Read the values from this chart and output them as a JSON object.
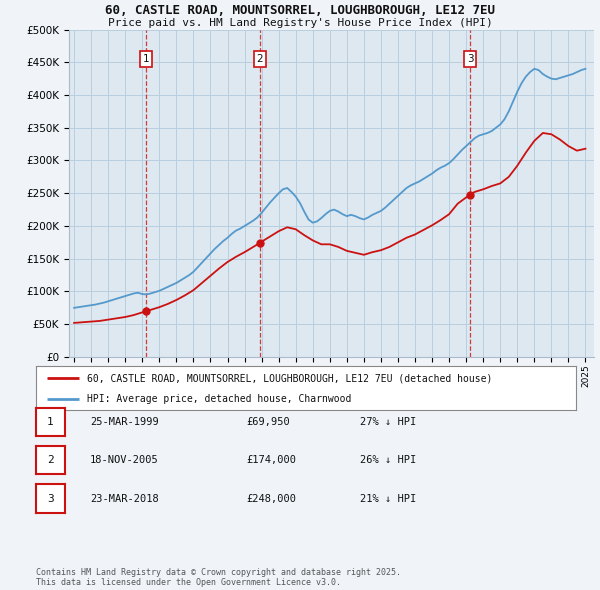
{
  "title": "60, CASTLE ROAD, MOUNTSORREL, LOUGHBOROUGH, LE12 7EU",
  "subtitle": "Price paid vs. HM Land Registry's House Price Index (HPI)",
  "ylim": [
    0,
    500000
  ],
  "yticks": [
    0,
    50000,
    100000,
    150000,
    200000,
    250000,
    300000,
    350000,
    400000,
    450000,
    500000
  ],
  "ytick_labels": [
    "£0",
    "£50K",
    "£100K",
    "£150K",
    "£200K",
    "£250K",
    "£300K",
    "£350K",
    "£400K",
    "£450K",
    "£500K"
  ],
  "xlim_start": 1994.7,
  "xlim_end": 2025.5,
  "bg_color": "#f0f4f8",
  "plot_bg_color": "#dde8f0",
  "grid_color": "#b8cfe0",
  "hpi_color": "#5599cc",
  "sale_color": "#cc1111",
  "vline_color": "#cc1111",
  "sale_points": [
    {
      "year": 1999.23,
      "value": 69950,
      "label": "1"
    },
    {
      "year": 2005.89,
      "value": 174000,
      "label": "2"
    },
    {
      "year": 2018.23,
      "value": 248000,
      "label": "3"
    }
  ],
  "legend_entries": [
    {
      "label": "60, CASTLE ROAD, MOUNTSORREL, LOUGHBOROUGH, LE12 7EU (detached house)",
      "color": "#cc1111"
    },
    {
      "label": "HPI: Average price, detached house, Charnwood",
      "color": "#5599cc"
    }
  ],
  "table_rows": [
    {
      "num": "1",
      "date": "25-MAR-1999",
      "price": "£69,950",
      "pct": "27% ↓ HPI"
    },
    {
      "num": "2",
      "date": "18-NOV-2005",
      "price": "£174,000",
      "pct": "26% ↓ HPI"
    },
    {
      "num": "3",
      "date": "23-MAR-2018",
      "price": "£248,000",
      "pct": "21% ↓ HPI"
    }
  ],
  "footnote": "Contains HM Land Registry data © Crown copyright and database right 2025.\nThis data is licensed under the Open Government Licence v3.0.",
  "vline_years": [
    1999.23,
    2005.89,
    2018.23
  ],
  "hpi_x": [
    1995.0,
    1995.25,
    1995.5,
    1995.75,
    1996.0,
    1996.25,
    1996.5,
    1996.75,
    1997.0,
    1997.25,
    1997.5,
    1997.75,
    1998.0,
    1998.25,
    1998.5,
    1998.75,
    1999.0,
    1999.25,
    1999.5,
    1999.75,
    2000.0,
    2000.25,
    2000.5,
    2000.75,
    2001.0,
    2001.25,
    2001.5,
    2001.75,
    2002.0,
    2002.25,
    2002.5,
    2002.75,
    2003.0,
    2003.25,
    2003.5,
    2003.75,
    2004.0,
    2004.25,
    2004.5,
    2004.75,
    2005.0,
    2005.25,
    2005.5,
    2005.75,
    2006.0,
    2006.25,
    2006.5,
    2006.75,
    2007.0,
    2007.25,
    2007.5,
    2007.75,
    2008.0,
    2008.25,
    2008.5,
    2008.75,
    2009.0,
    2009.25,
    2009.5,
    2009.75,
    2010.0,
    2010.25,
    2010.5,
    2010.75,
    2011.0,
    2011.25,
    2011.5,
    2011.75,
    2012.0,
    2012.25,
    2012.5,
    2012.75,
    2013.0,
    2013.25,
    2013.5,
    2013.75,
    2014.0,
    2014.25,
    2014.5,
    2014.75,
    2015.0,
    2015.25,
    2015.5,
    2015.75,
    2016.0,
    2016.25,
    2016.5,
    2016.75,
    2017.0,
    2017.25,
    2017.5,
    2017.75,
    2018.0,
    2018.25,
    2018.5,
    2018.75,
    2019.0,
    2019.25,
    2019.5,
    2019.75,
    2020.0,
    2020.25,
    2020.5,
    2020.75,
    2021.0,
    2021.25,
    2021.5,
    2021.75,
    2022.0,
    2022.25,
    2022.5,
    2022.75,
    2023.0,
    2023.25,
    2023.5,
    2023.75,
    2024.0,
    2024.25,
    2024.5,
    2024.75,
    2025.0
  ],
  "hpi_y": [
    75000,
    76000,
    77000,
    78000,
    79000,
    80000,
    81500,
    83000,
    85000,
    87000,
    89000,
    91000,
    93000,
    95000,
    97000,
    98000,
    96000,
    95500,
    97000,
    99000,
    101000,
    104000,
    107000,
    110000,
    113000,
    117000,
    121000,
    125000,
    130000,
    137000,
    144000,
    151000,
    158000,
    165000,
    171000,
    177000,
    182000,
    188000,
    193000,
    196000,
    200000,
    204000,
    208000,
    213000,
    220000,
    228000,
    236000,
    243000,
    250000,
    256000,
    258000,
    252000,
    245000,
    235000,
    222000,
    210000,
    205000,
    207000,
    212000,
    218000,
    223000,
    225000,
    222000,
    218000,
    215000,
    217000,
    215000,
    212000,
    210000,
    213000,
    217000,
    220000,
    223000,
    228000,
    234000,
    240000,
    246000,
    252000,
    258000,
    262000,
    265000,
    268000,
    272000,
    276000,
    280000,
    285000,
    289000,
    292000,
    296000,
    302000,
    309000,
    316000,
    322000,
    328000,
    334000,
    338000,
    340000,
    342000,
    345000,
    350000,
    355000,
    363000,
    375000,
    390000,
    405000,
    418000,
    428000,
    435000,
    440000,
    438000,
    432000,
    428000,
    425000,
    424000,
    426000,
    428000,
    430000,
    432000,
    435000,
    438000,
    440000
  ],
  "sale_x": [
    1995.0,
    1995.5,
    1996.0,
    1996.5,
    1997.0,
    1997.5,
    1998.0,
    1998.5,
    1999.23,
    1999.5,
    2000.0,
    2000.5,
    2001.0,
    2001.5,
    2002.0,
    2002.5,
    2003.0,
    2003.5,
    2004.0,
    2004.5,
    2005.0,
    2005.89,
    2006.0,
    2006.5,
    2007.0,
    2007.5,
    2008.0,
    2008.5,
    2009.0,
    2009.5,
    2010.0,
    2010.5,
    2011.0,
    2011.5,
    2012.0,
    2012.5,
    2013.0,
    2013.5,
    2014.0,
    2014.5,
    2015.0,
    2015.5,
    2016.0,
    2016.5,
    2017.0,
    2017.5,
    2018.23,
    2018.5,
    2019.0,
    2019.5,
    2020.0,
    2020.5,
    2021.0,
    2021.5,
    2022.0,
    2022.5,
    2023.0,
    2023.5,
    2024.0,
    2024.5,
    2025.0
  ],
  "sale_y": [
    52000,
    53000,
    54000,
    55000,
    57000,
    59000,
    61000,
    64000,
    69950,
    72000,
    76000,
    81000,
    87000,
    94000,
    102000,
    113000,
    124000,
    135000,
    145000,
    153000,
    160000,
    174000,
    176000,
    184000,
    192000,
    198000,
    195000,
    186000,
    178000,
    172000,
    172000,
    168000,
    162000,
    159000,
    156000,
    160000,
    163000,
    168000,
    175000,
    182000,
    187000,
    194000,
    201000,
    209000,
    218000,
    234000,
    248000,
    252000,
    256000,
    261000,
    265000,
    275000,
    292000,
    312000,
    330000,
    342000,
    340000,
    332000,
    322000,
    315000,
    318000
  ]
}
